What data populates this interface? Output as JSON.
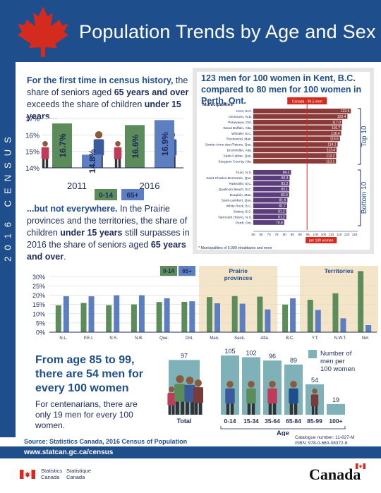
{
  "header": {
    "title": "Population Trends by Age and Sex",
    "sidebar_text": "2016 CENSUS"
  },
  "section1": {
    "lead_bold": "For the first time in census history,",
    "text_a": " the share of seniors aged ",
    "bold_65": "65 years and over",
    "text_b": " exceeds the share of children ",
    "bold_15": "under 15 years",
    "text_c": "..."
  },
  "section2": {
    "lead_bold": "...but not everywhere.",
    "text_a": " In the Prairie provinces and the territories, the share of children ",
    "bold_15": "under 15 years",
    "text_b": " still surpasses in 2016 the share of seniors aged ",
    "bold_65": "65 years and over",
    "text_c": "."
  },
  "kent": {
    "title": "123 men for 100 women in Kent, B.C. compared to 80 men for 100 women in Perth, Ont.",
    "footnote": "* Municipalities of 5,000 inhabitants and more"
  },
  "population": {
    "title": "From age 85 to 99, there are 54 men for every 100 women",
    "subtitle": "For centenarians, there are only 19 men for every 100 women."
  },
  "footer": {
    "source": "Source: Statistics Canada, 2016 Census of Population",
    "catalogue": "Catalogue number: 11-627-M",
    "isbn": "ISBN: 978-0-660-08372-8",
    "url": "www.statcan.gc.ca/census",
    "sc_en_1": "Statistics",
    "sc_en_2": "Canada",
    "sc_fr_1": "Statistique",
    "sc_fr_2": "Canada",
    "canada_wordmark": "Canada"
  },
  "colors": {
    "navy": "#1f4e8c",
    "green": "#5b8c5a",
    "blue": "#5d7ec0",
    "maroon": "#7b3a3a",
    "purple": "#5a3d7a",
    "teal": "#7fb2b8",
    "beige": "#f4e4c8",
    "red": "#d52b1e"
  },
  "chart_data": [
    {
      "type": "bar",
      "title": "",
      "categories": [
        "2011",
        "2016"
      ],
      "series": [
        {
          "name": "0-14",
          "values": [
            16.7,
            16.6
          ],
          "color": "#5b8c5a"
        },
        {
          "name": "65+",
          "values": [
            14.8,
            16.9
          ],
          "color": "#5d7ec0"
        }
      ],
      "value_labels": [
        "16.7%",
        "14.8%",
        "16.6%",
        "16.9%"
      ],
      "y_ticks": [
        "14%",
        "15%",
        "16%",
        "17%"
      ],
      "ylim": [
        14,
        17
      ],
      "legend": [
        "0-14",
        "65+"
      ],
      "legend_position": "bottom-right"
    },
    {
      "type": "bar",
      "orientation": "horizontal",
      "header_label": "Municipalities*",
      "reference_label": "Canada - 94.5 men",
      "reference_value": 94.5,
      "axis_ticks": [
        "60",
        "65",
        "70",
        "75",
        "80",
        "85",
        "90",
        "95",
        "100",
        "105",
        "110",
        "115",
        "120",
        "125"
      ],
      "axis_label": "per 100 women",
      "xlim": [
        60,
        127
      ],
      "groups": [
        {
          "name": "Top 10",
          "color": "#8b3a3a",
          "categories": [
            "Kent, B.C.",
            "Oromocto, N.B.",
            "Petawawa, Ont.",
            "Wood Buffalo, Alta.",
            "Whistler, B.C.",
            "Rockwood, Man.",
            "Sainte-Anne-des-Plaines, Que.",
            "Drumheller, Alta.",
            "Saint-Calixte, Que.",
            "Sturgeon County, Alta."
          ],
          "values": [
            122.6,
            120.4,
            117.0,
            116.7,
            116.4,
            115.6,
            114.1,
            113.4,
            113.2,
            113.1
          ],
          "labels": [
            "122.6",
            "120.4",
            "117.0",
            "116.7",
            "116.4",
            "115.6",
            "114.1",
            "113.4",
            "113.2",
            "113.1"
          ]
        },
        {
          "name": "Bottom 10",
          "color": "#5a3d7a",
          "categories": [
            "Truro, N.S.",
            "Saint-Charles-Borromée, Que.",
            "Parksville, B.C.",
            "Qualicum Beach, B.C.",
            "Dauphin, Man.",
            "Saint-Lambert, Que.",
            "White Rock, B.C.",
            "Sidney, B.C.",
            "Yarmouth (Town), N.S.",
            "Perth, Ont."
          ],
          "values": [
            84.2,
            83.3,
            83.2,
            83.1,
            83.0,
            81.9,
            81.7,
            81.2,
            81.2,
            79.8
          ],
          "labels": [
            "84.2",
            "83.3",
            "83.2",
            "83.1",
            "83.0",
            "81.9",
            "81.7",
            "81.2",
            "81.2",
            "79.8"
          ]
        }
      ]
    },
    {
      "type": "bar",
      "categories": [
        "N.L.",
        "P.E.I.",
        "N.S.",
        "N.B.",
        "Que.",
        "Ont.",
        "Man.",
        "Sask.",
        "Alta.",
        "B.C.",
        "Y.T.",
        "N.W.T.",
        "Nvt."
      ],
      "series": [
        {
          "name": "0-14",
          "values": [
            14.5,
            15.8,
            14.6,
            15.0,
            16.3,
            16.4,
            19.0,
            19.5,
            19.2,
            14.9,
            17.5,
            21.0,
            33.0
          ],
          "color": "#5b8c5a"
        },
        {
          "name": "65+",
          "values": [
            19.4,
            19.4,
            19.9,
            19.9,
            18.3,
            16.7,
            15.6,
            15.4,
            12.3,
            18.3,
            12.0,
            7.5,
            3.8
          ],
          "color": "#5d7ec0"
        }
      ],
      "y_ticks": [
        "0%",
        "5%",
        "10%",
        "15%",
        "20%",
        "25%",
        "30%"
      ],
      "ylim": [
        0,
        32
      ],
      "legend": [
        "0-14",
        "65+"
      ],
      "legend_position": "top-center",
      "highlight_groups": [
        {
          "label": "Prairie provinces",
          "categories": [
            "Man.",
            "Sask.",
            "Alta."
          ]
        },
        {
          "label": "Territories",
          "categories": [
            "Y.T.",
            "N.W.T.",
            "Nvt."
          ]
        }
      ]
    },
    {
      "type": "bar",
      "categories": [
        "0-14",
        "15-34",
        "35-64",
        "65-84",
        "85-99",
        "100+"
      ],
      "values": [
        105,
        102,
        96,
        89,
        54,
        19
      ],
      "total_label": "Total",
      "total_value": 97,
      "xlabel": "Age",
      "legend": [
        "Number of men per 100 women"
      ],
      "color": "#7fb2b8"
    }
  ]
}
